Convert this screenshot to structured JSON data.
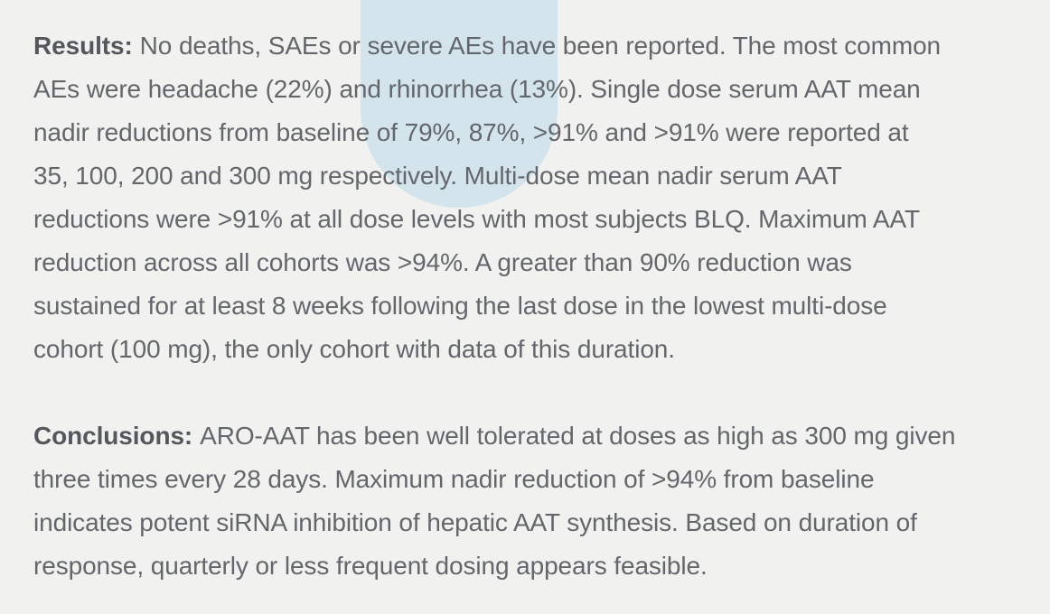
{
  "colors": {
    "background": "#f1f1ef",
    "shape_blue": "#d3e4ec",
    "body_text": "#63676c",
    "label_text": "#54585c"
  },
  "paragraphs": [
    {
      "label": "Results:",
      "lines": [
        "No deaths, SAEs or severe AEs have been reported. The most common",
        "AEs were headache (22%) and rhinorrhea (13%). Single dose serum AAT mean",
        "nadir reductions from baseline of 79%, 87%, >91% and >91% were reported at",
        "35, 100, 200 and 300 mg respectively. Multi-dose mean nadir serum AAT",
        "reductions were >91% at all dose levels with most subjects BLQ. Maximum AAT",
        "reduction across all cohorts was >94%. A greater than 90% reduction was",
        "sustained for at least 8 weeks following the last dose in the lowest multi-dose",
        "cohort (100 mg), the only cohort with data of this duration."
      ]
    },
    {
      "label": "Conclusions:",
      "lines": [
        "ARO-AAT has been well tolerated at doses as high as 300 mg given",
        "three times every 28 days. Maximum nadir reduction of >94% from baseline",
        "indicates potent siRNA inhibition of hepatic AAT synthesis. Based on duration of",
        "response, quarterly or less frequent dosing appears feasible."
      ]
    }
  ]
}
